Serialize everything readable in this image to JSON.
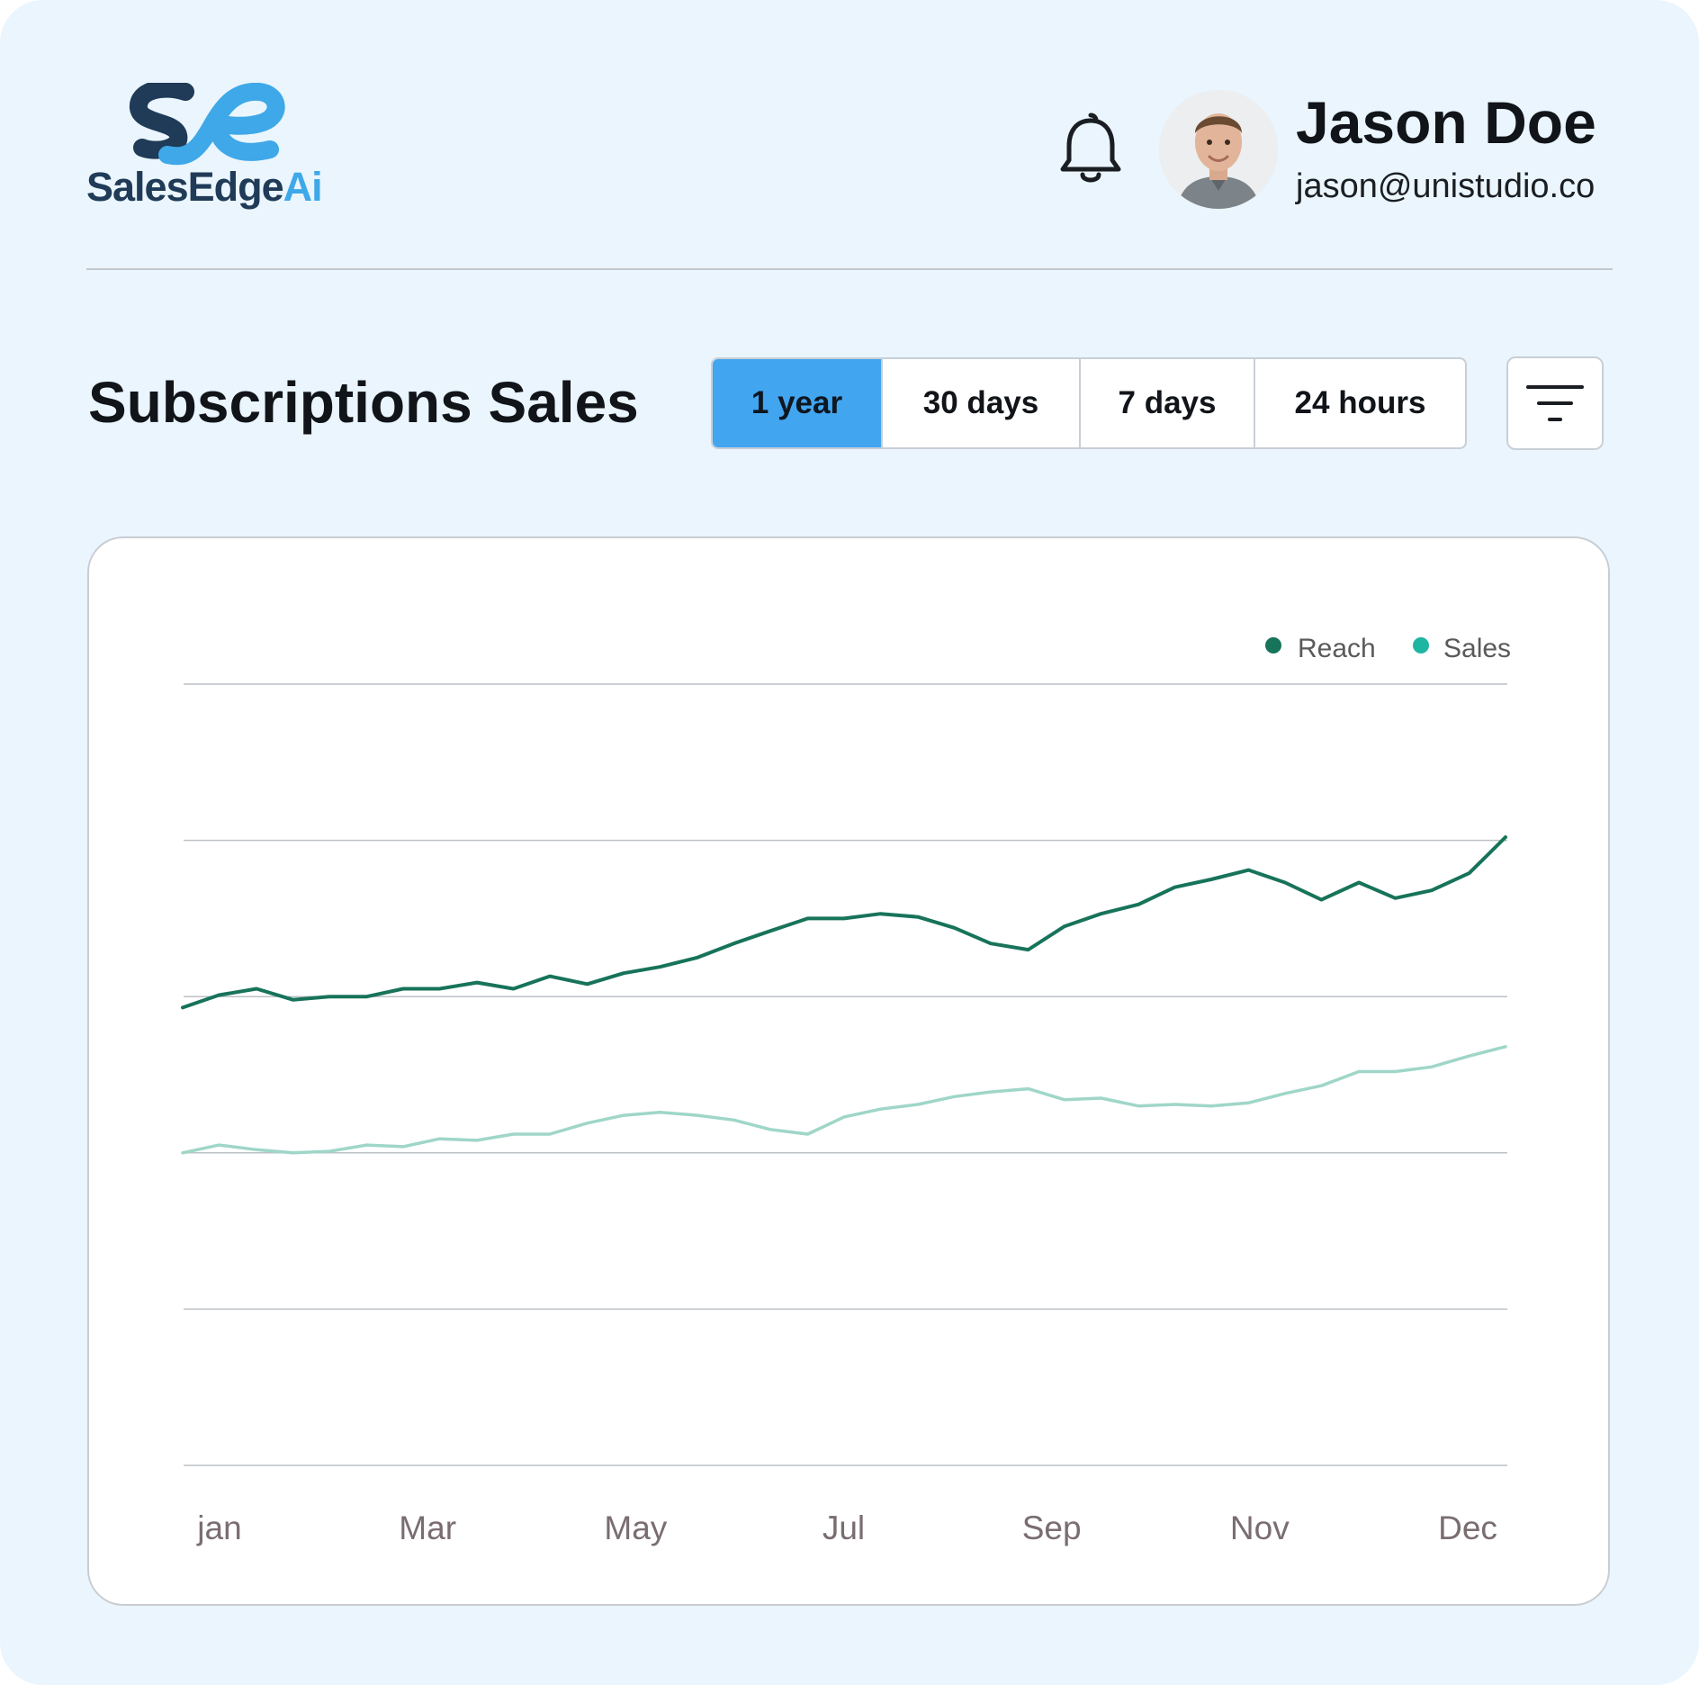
{
  "brand": {
    "logo_text_main": "SalesEdge",
    "logo_text_accent": "Ai",
    "colors": {
      "dark": "#1f3b57",
      "accent": "#3ea8e8"
    }
  },
  "header": {
    "notification_icon": "bell-icon",
    "user": {
      "name": "Jason Doe",
      "email": "jason@unistudio.co"
    }
  },
  "toolbar": {
    "title": "Subscriptions Sales",
    "ranges": [
      {
        "label": "1 year",
        "active": true
      },
      {
        "label": "30 days",
        "active": false
      },
      {
        "label": "7 days",
        "active": false
      },
      {
        "label": "24 hours",
        "active": false
      }
    ],
    "filter_icon": "filter-icon",
    "active_color": "#42a5ef"
  },
  "chart_data": {
    "type": "line",
    "title": "",
    "xlabel": "",
    "ylabel": "",
    "grid": true,
    "y_ticks_labeled": false,
    "ylim": [
      0,
      5
    ],
    "x_tick_labels": [
      "jan",
      "Mar",
      "May",
      "Jul",
      "Sep",
      "Nov",
      "Dec"
    ],
    "x": [
      0,
      0.33,
      0.67,
      1,
      1.33,
      1.67,
      2,
      2.33,
      2.67,
      3,
      3.33,
      3.67,
      4,
      4.33,
      4.67,
      5,
      5.33,
      5.67,
      6,
      6.33,
      6.67,
      7,
      7.33,
      7.67,
      8,
      8.33,
      8.67,
      9,
      9.33,
      9.67,
      10,
      10.33,
      10.67,
      11,
      11.33,
      11.67,
      12
    ],
    "legend_position": "top-right",
    "series": [
      {
        "name": "Reach",
        "color": "#17735a",
        "values": [
          2.93,
          3.01,
          3.05,
          2.98,
          3.0,
          3.0,
          3.05,
          3.05,
          3.09,
          3.05,
          3.13,
          3.08,
          3.15,
          3.19,
          3.25,
          3.34,
          3.42,
          3.5,
          3.5,
          3.53,
          3.51,
          3.44,
          3.34,
          3.3,
          3.45,
          3.53,
          3.59,
          3.7,
          3.75,
          3.81,
          3.73,
          3.62,
          3.73,
          3.63,
          3.68,
          3.79,
          4.02
        ]
      },
      {
        "name": "Sales",
        "color": "#9fd6c8",
        "values": [
          2.0,
          2.05,
          2.02,
          2.0,
          2.01,
          2.05,
          2.04,
          2.09,
          2.08,
          2.12,
          2.12,
          2.19,
          2.24,
          2.26,
          2.24,
          2.21,
          2.15,
          2.12,
          2.23,
          2.28,
          2.31,
          2.36,
          2.39,
          2.41,
          2.34,
          2.35,
          2.3,
          2.31,
          2.3,
          2.32,
          2.38,
          2.43,
          2.52,
          2.52,
          2.55,
          2.62,
          2.68
        ]
      }
    ]
  }
}
